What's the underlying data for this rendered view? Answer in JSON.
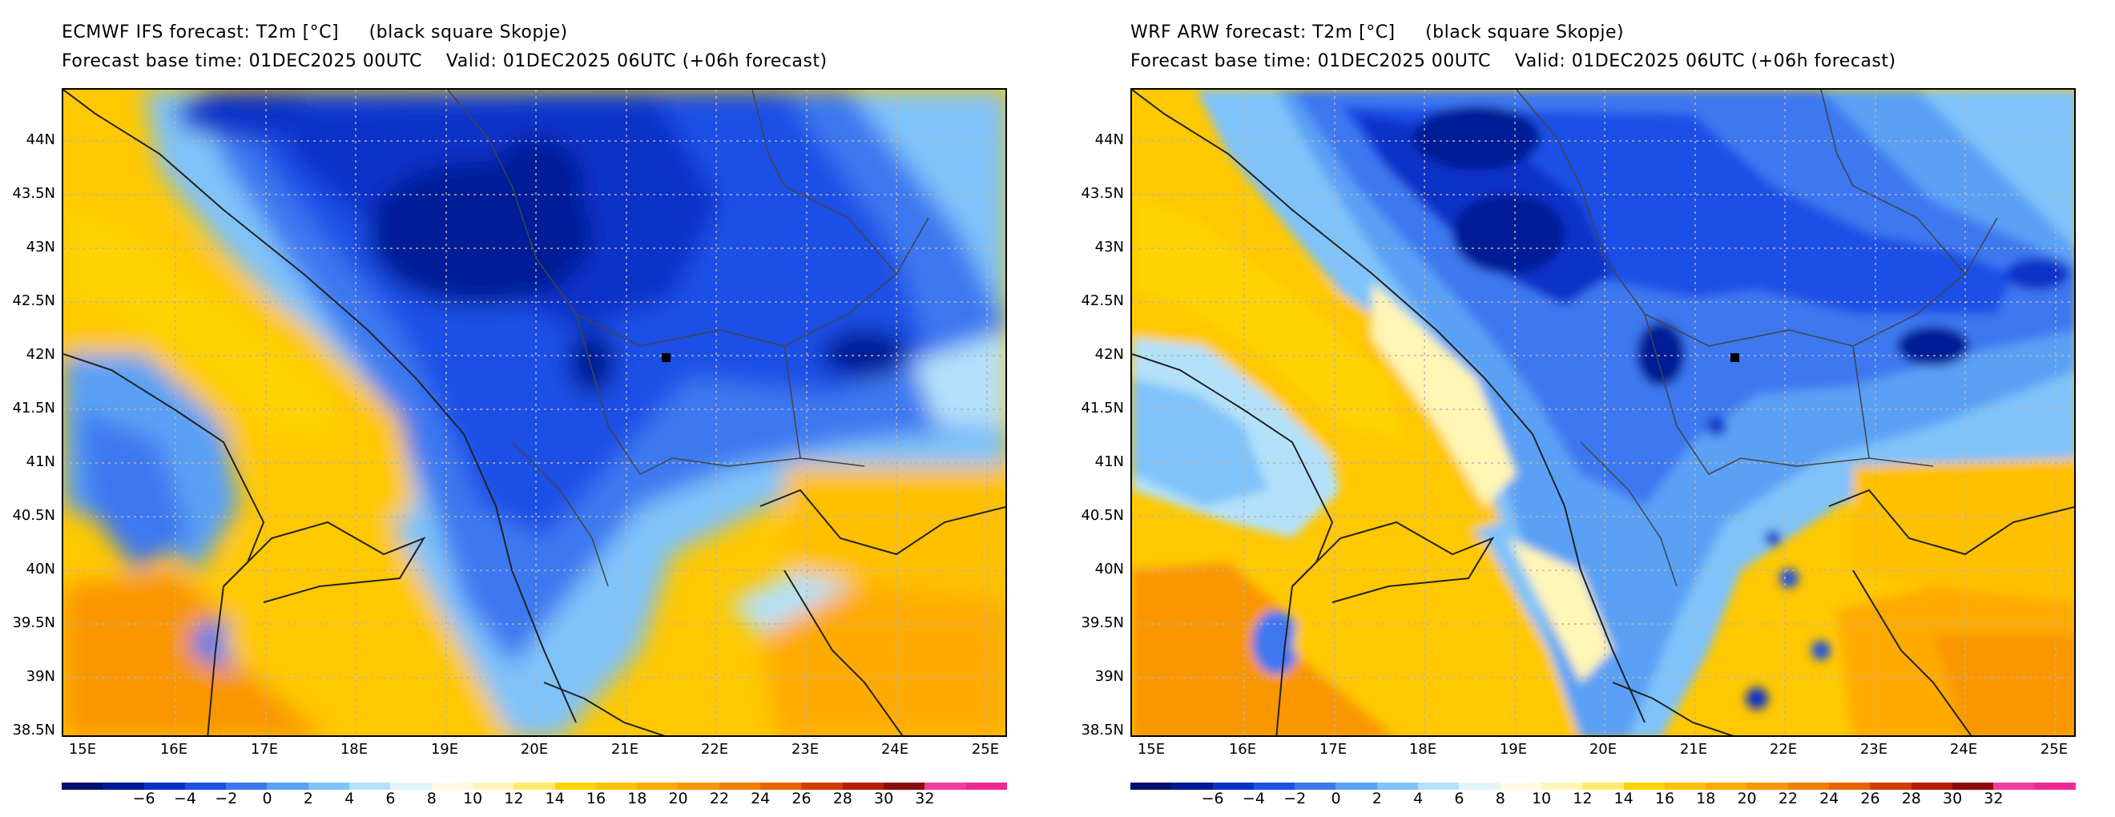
{
  "panels": [
    {
      "title": "ECMWF IFS forecast: T2m [°C]     (black square Skopje)",
      "subtitle": "Forecast base time: 01DEC2025 00UTC    Valid: 01DEC2025 06UTC (+06h forecast)"
    },
    {
      "title": "WRF ARW forecast: T2m [°C]     (black square Skopje)",
      "subtitle": "Forecast base time: 01DEC2025 00UTC    Valid: 01DEC2025 06UTC (+06h forecast)"
    }
  ],
  "lat_labels": [
    "44N",
    "43.5N",
    "43N",
    "42.5N",
    "42N",
    "41.5N",
    "41N",
    "40.5N",
    "40N",
    "39.5N",
    "39N",
    "38.5N"
  ],
  "lon_labels": [
    "15E",
    "16E",
    "17E",
    "18E",
    "19E",
    "20E",
    "21E",
    "22E",
    "23E",
    "24E",
    "25E"
  ],
  "colorbar": {
    "labels": [
      "−6",
      "−4",
      "−2",
      "0",
      "2",
      "4",
      "6",
      "8",
      "10",
      "12",
      "14",
      "16",
      "18",
      "20",
      "22",
      "24",
      "26",
      "28",
      "30",
      "32"
    ],
    "colors": [
      "#000f6e",
      "#001a96",
      "#0a32c8",
      "#1e50e6",
      "#3c78f0",
      "#5aa0f5",
      "#7fc3fa",
      "#b4e1fa",
      "#e1f5fc",
      "#fffae6",
      "#fff5b4",
      "#ffeb6e",
      "#ffd200",
      "#ffc000",
      "#ffaa00",
      "#fa9600",
      "#f07d00",
      "#e66400",
      "#d23c00",
      "#b41e00",
      "#8c0a0a",
      "#f03c9c",
      "#f02896"
    ]
  },
  "station": "Skopje"
}
